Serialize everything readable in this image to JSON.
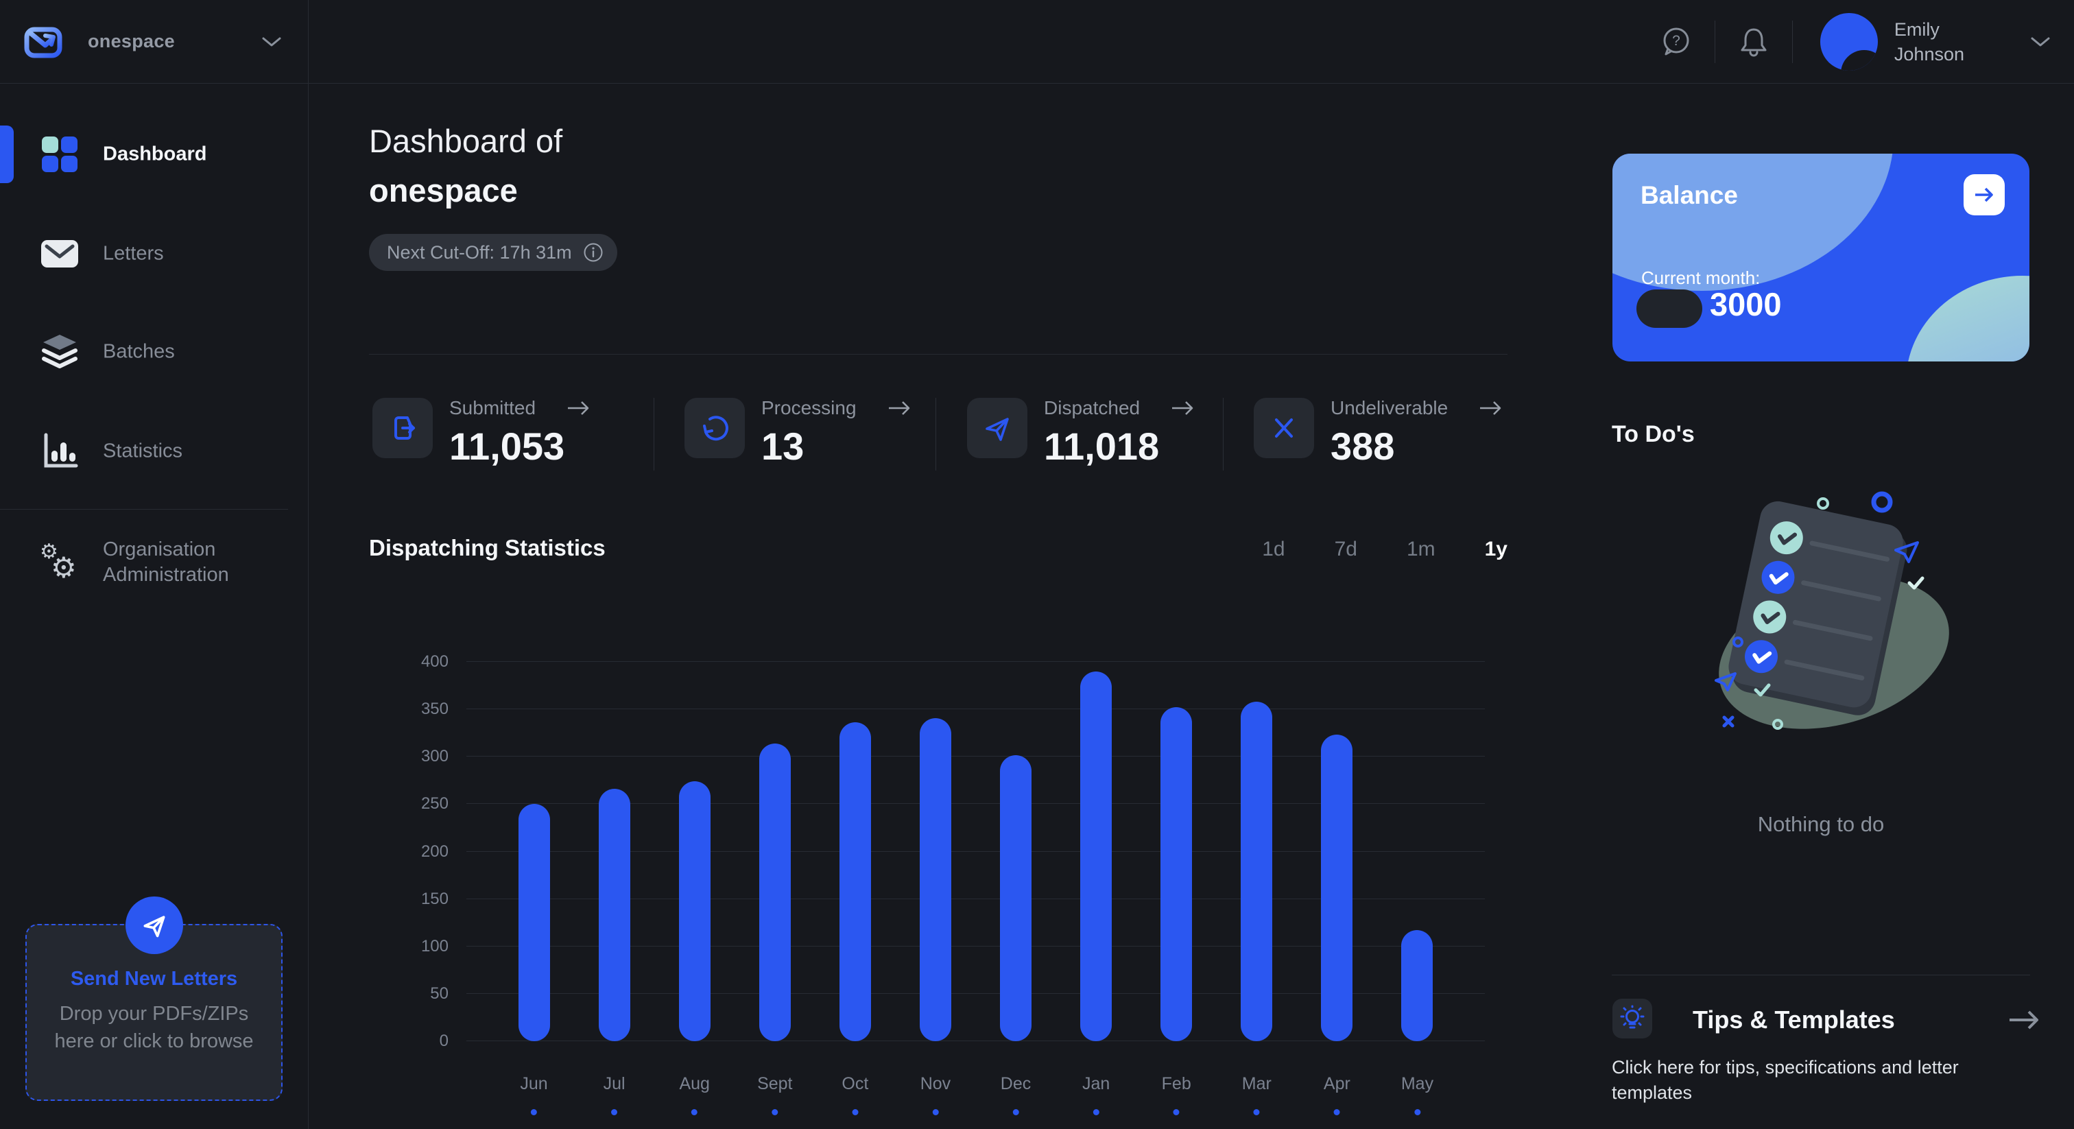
{
  "topbar": {
    "brand": "onespace",
    "user": {
      "line1": "Emily",
      "line2": "Johnson"
    }
  },
  "sidebar": {
    "items": [
      {
        "label": "Dashboard",
        "active": true
      },
      {
        "label": "Letters",
        "active": false
      },
      {
        "label": "Batches",
        "active": false
      },
      {
        "label": "Statistics",
        "active": false
      },
      {
        "label": "Organisation Administration",
        "active": false
      }
    ],
    "send_box": {
      "title": "Send New Letters",
      "subtitle": "Drop your PDFs/ZIPs here or click to browse"
    }
  },
  "header": {
    "title_prefix": "Dashboard of",
    "org_name": "onespace",
    "cutoff": "Next Cut-Off: 17h 31m"
  },
  "stats": [
    {
      "label": "Submitted",
      "value": "11,053"
    },
    {
      "label": "Processing",
      "value": "13"
    },
    {
      "label": "Dispatched",
      "value": "11,018"
    },
    {
      "label": "Undeliverable",
      "value": "388"
    }
  ],
  "chart": {
    "title": "Dispatching Statistics",
    "ranges": [
      "1d",
      "7d",
      "1m",
      "1y"
    ],
    "active_range": "1y"
  },
  "chart_data": {
    "type": "bar",
    "title": "Dispatching Statistics",
    "categories": [
      "Jun",
      "Jul",
      "Aug",
      "Sept",
      "Oct",
      "Nov",
      "Dec",
      "Jan",
      "Feb",
      "Mar",
      "Apr",
      "May"
    ],
    "values": [
      250,
      266,
      274,
      314,
      336,
      341,
      302,
      390,
      352,
      358,
      323,
      117
    ],
    "xlabel": "",
    "ylabel": "",
    "ylim": [
      0,
      400
    ],
    "yticks": [
      0,
      50,
      100,
      150,
      200,
      250,
      300,
      350,
      400
    ],
    "grid": true,
    "bar_color": "#2b57f1",
    "legend": "none"
  },
  "right_panel": {
    "balance": {
      "title": "Balance",
      "current_month_label": "Current month:",
      "amount": "3000"
    },
    "todos": {
      "title": "To Do's",
      "empty_message": "Nothing to do"
    },
    "tips": {
      "title": "Tips & Templates",
      "description": "Click here for tips, specifications and letter templates"
    }
  },
  "colors": {
    "accent": "#2b57f1",
    "teal": "#a9ded7",
    "balance_card": "#2b57f0",
    "background": "#16181d"
  }
}
